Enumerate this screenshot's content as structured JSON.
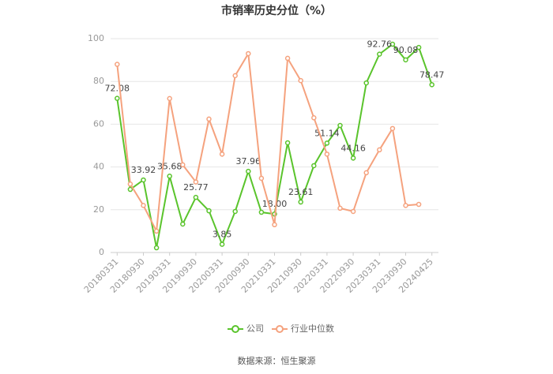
{
  "chart_data": {
    "type": "line",
    "title": "市销率历史分位（%）",
    "categories": [
      "20180331",
      null,
      "20180930",
      null,
      "20190331",
      null,
      "20190930",
      null,
      "20200331",
      null,
      "20200930",
      null,
      "20210331",
      null,
      "20210930",
      null,
      "20220331",
      null,
      "20220930",
      null,
      "20230331",
      null,
      "20230930",
      null,
      "20240425"
    ],
    "series": [
      {
        "name": "公司",
        "color": "#5ac42c",
        "values": [
          72.08,
          29.5,
          33.92,
          2.2,
          35.68,
          13.3,
          25.77,
          19.5,
          3.85,
          19.2,
          37.96,
          18.8,
          18.0,
          51.3,
          23.61,
          40.6,
          51.14,
          59.4,
          44.16,
          79.3,
          92.76,
          97.4,
          90.08,
          95.9,
          78.47
        ],
        "value_labels": [
          "72.08",
          null,
          "33.92",
          null,
          "35.68",
          null,
          "25.77",
          null,
          "3.85",
          null,
          "37.96",
          null,
          "18.00",
          null,
          "23.61",
          null,
          "51.14",
          null,
          "44.16",
          null,
          "92.76",
          null,
          "90.08",
          null,
          "78.47"
        ]
      },
      {
        "name": "行业中位数",
        "color": "#f5a27e",
        "values": [
          88,
          32,
          22,
          10,
          72,
          41,
          33,
          62.4,
          46,
          82.7,
          93,
          34.7,
          13,
          90.8,
          80.4,
          63,
          46,
          20.7,
          19.2,
          37.3,
          48,
          58,
          22,
          22.5,
          null
        ]
      }
    ],
    "ylim": [
      0,
      100
    ],
    "yticks": [
      0,
      20,
      40,
      60,
      80,
      100
    ],
    "grid": true,
    "legend": "bottom",
    "source": "数据来源：恒生聚源"
  }
}
